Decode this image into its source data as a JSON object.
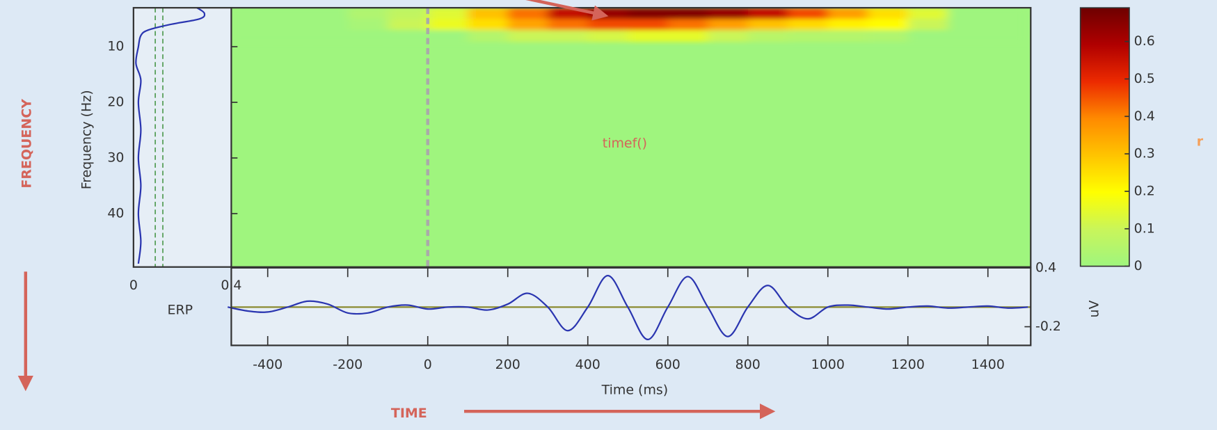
{
  "annotations": {
    "frequency": "FREQUENCY",
    "time": "TIME",
    "function": "timef()"
  },
  "chart_data": [
    {
      "type": "heatmap",
      "ylabel": "Frequency (Hz)",
      "xlim": [
        -491,
        1507
      ],
      "ylim": [
        3,
        49.6
      ],
      "yticks": [
        10,
        20,
        30,
        40
      ],
      "x": [
        -450,
        -350,
        -250,
        -150,
        -50,
        50,
        150,
        250,
        350,
        450,
        550,
        650,
        750,
        850,
        950,
        1050,
        1150,
        1250,
        1350,
        1450
      ],
      "y": [
        4,
        6,
        8
      ],
      "values": [
        [
          0,
          0,
          0,
          0.04,
          0.08,
          0.14,
          0.3,
          0.42,
          0.56,
          0.63,
          0.66,
          0.66,
          0.63,
          0.56,
          0.46,
          0.36,
          0.25,
          0.14,
          0,
          0
        ],
        [
          0,
          0,
          0,
          0.02,
          0.1,
          0.16,
          0.25,
          0.35,
          0.42,
          0.46,
          0.46,
          0.42,
          0.36,
          0.3,
          0.26,
          0.22,
          0.2,
          0.1,
          0,
          0
        ],
        [
          0,
          0,
          0,
          0,
          0,
          0,
          0.05,
          0.1,
          0.1,
          0.12,
          0.15,
          0.15,
          0.1,
          0.06,
          0.05,
          0.05,
          0.04,
          0,
          0,
          0
        ]
      ],
      "colormap": [
        "#9ff57e",
        "#c9f55a",
        "#ffff00",
        "#ffc400",
        "#ff8a00",
        "#ec2a00",
        "#b00000",
        "#6e0000"
      ],
      "clim": [
        0,
        0.69
      ],
      "cticks": [
        0,
        0.1,
        0.2,
        0.3,
        0.4,
        0.5,
        0.6
      ],
      "colorbar_label": "r"
    },
    {
      "type": "line",
      "label": "ERP",
      "xlabel": "Time (ms)",
      "xlim": [
        -491,
        1507
      ],
      "xticks": [
        -400,
        -200,
        0,
        200,
        400,
        600,
        800,
        1000,
        1200,
        1400
      ],
      "y2lim": [
        -0.39,
        0.4
      ],
      "y2ticks": [
        -0.2,
        0.4
      ],
      "y2label": "uV",
      "x": [
        -500,
        -450,
        -400,
        -350,
        -300,
        -250,
        -200,
        -150,
        -100,
        -50,
        0,
        50,
        100,
        150,
        200,
        250,
        300,
        350,
        400,
        450,
        500,
        550,
        600,
        650,
        700,
        750,
        800,
        850,
        900,
        950,
        1000,
        1050,
        1100,
        1150,
        1200,
        1250,
        1300,
        1350,
        1400,
        1450,
        1500
      ],
      "series": [
        {
          "color": "#2a35b0",
          "axis": "y2",
          "values": [
            0.0,
            -0.04,
            -0.05,
            0.0,
            0.06,
            0.03,
            -0.06,
            -0.06,
            0.0,
            0.02,
            -0.02,
            0.0,
            0.0,
            -0.03,
            0.03,
            0.14,
            0.0,
            -0.24,
            0.0,
            0.32,
            0.0,
            -0.33,
            0.0,
            0.31,
            0.0,
            -0.3,
            0.0,
            0.22,
            0.0,
            -0.12,
            0.0,
            0.02,
            0.0,
            -0.02,
            0.0,
            0.01,
            -0.01,
            0.0,
            0.01,
            -0.01,
            0.0
          ]
        }
      ]
    },
    {
      "type": "spectrum",
      "xlim": [
        0,
        0.4
      ],
      "xticks": [
        0,
        0.4
      ],
      "y": [
        3,
        4,
        5,
        6,
        7,
        8,
        10,
        13,
        16,
        20,
        25,
        30,
        35,
        40,
        45,
        49
      ],
      "values": [
        0.26,
        0.29,
        0.27,
        0.15,
        0.06,
        0.03,
        0.02,
        0.01,
        0.03,
        0.02,
        0.03,
        0.02,
        0.03,
        0.02,
        0.03,
        0.02
      ],
      "color": "#2a35b0",
      "thresholds": [
        0.089,
        0.12
      ],
      "threshold_color": "#4f9a4f"
    }
  ]
}
